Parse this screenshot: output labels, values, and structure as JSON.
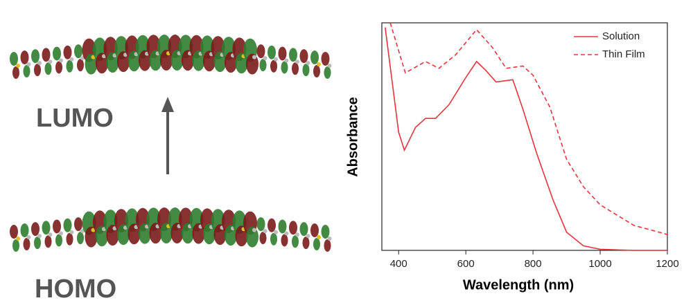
{
  "diagram": {
    "upper_label": "LUMO",
    "lower_label": "HOMO"
  },
  "chart_data": {
    "type": "line",
    "x_label": "Wavelength (nm)",
    "y_label": "Absorbance",
    "xlim": [
      350,
      1200
    ],
    "xticks": [
      400,
      600,
      800,
      1000,
      1200
    ],
    "ylim": [
      0,
      1
    ],
    "legend": "upper right",
    "series": [
      {
        "name": "Solution",
        "color": "#e8323c",
        "dash": false,
        "x": [
          360,
          400,
          417,
          450,
          480,
          510,
          550,
          600,
          632,
          660,
          690,
          740,
          770,
          810,
          860,
          900,
          950,
          1000,
          1100,
          1200
        ],
        "values": [
          0.98,
          0.52,
          0.44,
          0.54,
          0.58,
          0.58,
          0.64,
          0.76,
          0.83,
          0.79,
          0.74,
          0.75,
          0.62,
          0.43,
          0.22,
          0.08,
          0.02,
          0.005,
          0,
          0
        ]
      },
      {
        "name": "Thin Film",
        "color": "#e8323c",
        "dash": true,
        "x": [
          375,
          420,
          480,
          520,
          570,
          632,
          680,
          720,
          770,
          800,
          850,
          900,
          950,
          1000,
          1100,
          1200
        ],
        "values": [
          1.0,
          0.78,
          0.83,
          0.8,
          0.86,
          0.97,
          0.89,
          0.8,
          0.81,
          0.77,
          0.63,
          0.4,
          0.28,
          0.2,
          0.11,
          0.07
        ]
      }
    ]
  }
}
